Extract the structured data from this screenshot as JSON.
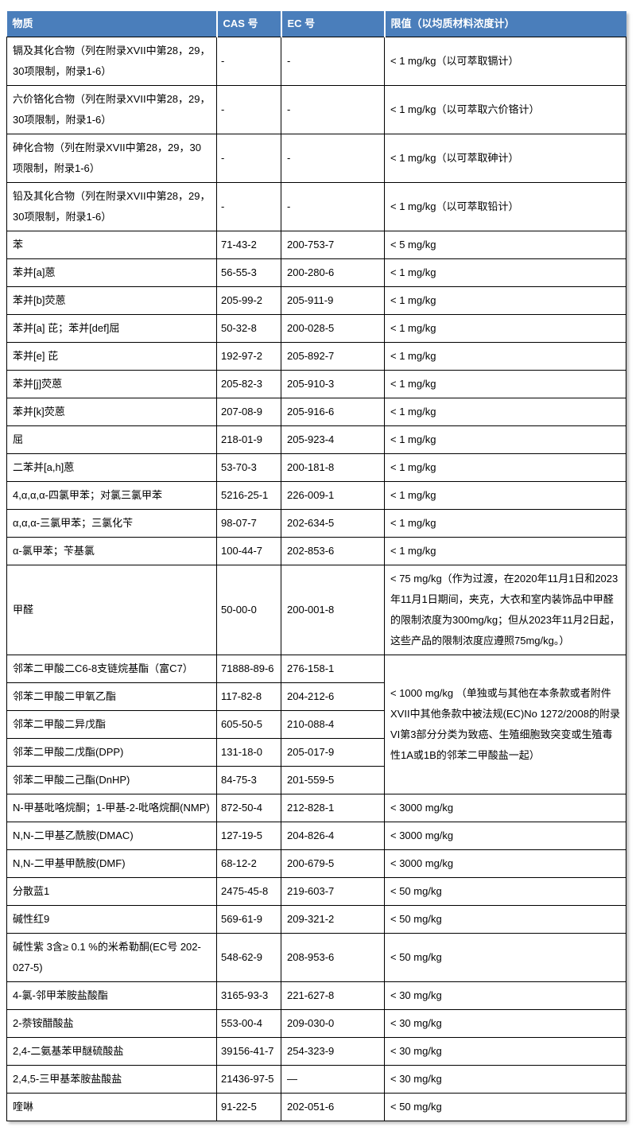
{
  "colors": {
    "header_bg": "#4a7ebb",
    "header_text": "#ffffff",
    "border_color": "#000000",
    "page_bg": "#ffffff"
  },
  "table": {
    "columns": [
      {
        "key": "substance",
        "label": "物质"
      },
      {
        "key": "cas",
        "label": "CAS 号"
      },
      {
        "key": "ec",
        "label": "EC 号"
      },
      {
        "key": "limit",
        "label": "限值（以均质材料浓度计）"
      }
    ],
    "rows": [
      {
        "substance": "镉及其化合物（列在附录XVII中第28，29，30项限制，附录1-6）",
        "cas": "-",
        "ec": "-",
        "limit": "< 1 mg/kg（以可萃取镉计）"
      },
      {
        "substance": "六价铬化合物（列在附录XVII中第28，29，30项限制，附录1-6）",
        "cas": "-",
        "ec": "-",
        "limit": "< 1 mg/kg（以可萃取六价铬计）"
      },
      {
        "substance": "砷化合物（列在附录XVII中第28，29，30项限制，附录1-6）",
        "cas": "-",
        "ec": "-",
        "limit": "< 1 mg/kg（以可萃取砷计）"
      },
      {
        "substance": "铅及其化合物（列在附录XVII中第28，29，30项限制，附录1-6）",
        "cas": "-",
        "ec": "-",
        "limit": "< 1 mg/kg（以可萃取铅计）"
      },
      {
        "substance": "苯",
        "cas": "71-43-2",
        "ec": "200-753-7",
        "limit": "< 5 mg/kg"
      },
      {
        "substance": "苯并[a]蒽",
        "cas": "56-55-3",
        "ec": "200-280-6",
        "limit": "< 1 mg/kg"
      },
      {
        "substance": "苯并[b]荧蒽",
        "cas": "205-99-2",
        "ec": "205-911-9",
        "limit": "< 1 mg/kg"
      },
      {
        "substance": "苯并[a] 芘；苯并[def]屈",
        "cas": "50-32-8",
        "ec": "200-028-5",
        "limit": "< 1 mg/kg"
      },
      {
        "substance": "苯并[e] 芘",
        "cas": "192-97-2",
        "ec": "205-892-7",
        "limit": "< 1 mg/kg"
      },
      {
        "substance": "苯并[j]荧蒽",
        "cas": "205-82-3",
        "ec": "205-910-3",
        "limit": "< 1 mg/kg"
      },
      {
        "substance": "苯并[k]荧蒽",
        "cas": "207-08-9",
        "ec": "205-916-6",
        "limit": "< 1 mg/kg"
      },
      {
        "substance": "屈",
        "cas": "218-01-9",
        "ec": "205-923-4",
        "limit": "< 1 mg/kg"
      },
      {
        "substance": "二苯并[a,h]蒽",
        "cas": "53-70-3",
        "ec": "200-181-8",
        "limit": "< 1 mg/kg"
      },
      {
        "substance": "4,α,α,α-四氯甲苯；对氯三氯甲苯",
        "cas": "5216-25-1",
        "ec": "226-009-1",
        "limit": "< 1 mg/kg"
      },
      {
        "substance": "α,α,α-三氯甲苯；三氯化苄",
        "cas": "98-07-7",
        "ec": "202-634-5",
        "limit": "< 1 mg/kg"
      },
      {
        "substance": "α-氯甲苯；苄基氯",
        "cas": "100-44-7",
        "ec": "202-853-6",
        "limit": "< 1 mg/kg"
      },
      {
        "substance": "甲醛",
        "cas": "50-00-0",
        "ec": "200-001-8",
        "limit": "< 75 mg/kg（作为过渡，在2020年11月1日和2023年11月1日期间，夹克，大衣和室内装饰品中甲醛的限制浓度为300mg/kg；但从2023年11月2日起，这些产品的限制浓度应遵照75mg/kg。）"
      },
      {
        "substance": "邻苯二甲酸二C6-8支链烷基酯（富C7）",
        "cas": "71888-89-6",
        "ec": "276-158-1",
        "limit": "< 1000 mg/kg （单独或与其他在本条款或者附件XVII中其他条款中被法规(EC)No  1272/2008的附录VI第3部分分类为致癌、生殖细胞致突变或生殖毒性1A或1B的邻苯二甲酸盐一起）",
        "limit_rowspan": 5
      },
      {
        "substance": "邻苯二甲酸二甲氧乙酯",
        "cas": "117-82-8",
        "ec": "204-212-6"
      },
      {
        "substance": "邻苯二甲酸二异戊酯",
        "cas": "605-50-5",
        "ec": "210-088-4"
      },
      {
        "substance": "邻苯二甲酸二戊酯(DPP)",
        "cas": "131-18-0",
        "ec": "205-017-9"
      },
      {
        "substance": "邻苯二甲酸二己酯(DnHP)",
        "cas": "84-75-3",
        "ec": "201-559-5"
      },
      {
        "substance": "N-甲基吡咯烷酮；1-甲基-2-吡咯烷酮(NMP)",
        "cas": "872-50-4",
        "ec": "212-828-1",
        "limit": "< 3000 mg/kg"
      },
      {
        "substance": "N,N-二甲基乙酰胺(DMAC)",
        "cas": "127-19-5",
        "ec": "204-826-4",
        "limit": "< 3000 mg/kg"
      },
      {
        "substance": "N,N-二甲基甲酰胺(DMF)",
        "cas": "68-12-2",
        "ec": "200-679-5",
        "limit": "< 3000 mg/kg"
      },
      {
        "substance": "分散蓝1",
        "cas": "2475-45-8",
        "ec": "219-603-7",
        "limit": "< 50 mg/kg"
      },
      {
        "substance": "碱性红9",
        "cas": "569-61-9",
        "ec": "209-321-2",
        "limit": "< 50 mg/kg"
      },
      {
        "substance": "碱性紫 3含≥ 0.1 %的米希勒酮(EC号 202-027-5)",
        "cas": "548-62-9",
        "ec": "208-953-6",
        "limit": "< 50 mg/kg"
      },
      {
        "substance": "4-氯-邻甲苯胺盐酸酯",
        "cas": "3165-93-3",
        "ec": "221-627-8",
        "limit": "< 30 mg/kg"
      },
      {
        "substance": "2-萘铵醋酸盐",
        "cas": "553-00-4",
        "ec": "209-030-0",
        "limit": "< 30 mg/kg"
      },
      {
        "substance": "2,4-二氨基苯甲醚硫酸盐",
        "cas": "39156-41-7",
        "ec": "254-323-9",
        "limit": "< 30 mg/kg"
      },
      {
        "substance": "2,4,5-三甲基苯胺盐酸盐",
        "cas": "21436-97-5",
        "ec": "—",
        "limit": "< 30 mg/kg"
      },
      {
        "substance": "喹啉",
        "cas": "91-22-5",
        "ec": "202-051-6",
        "limit": "< 50 mg/kg"
      }
    ]
  }
}
